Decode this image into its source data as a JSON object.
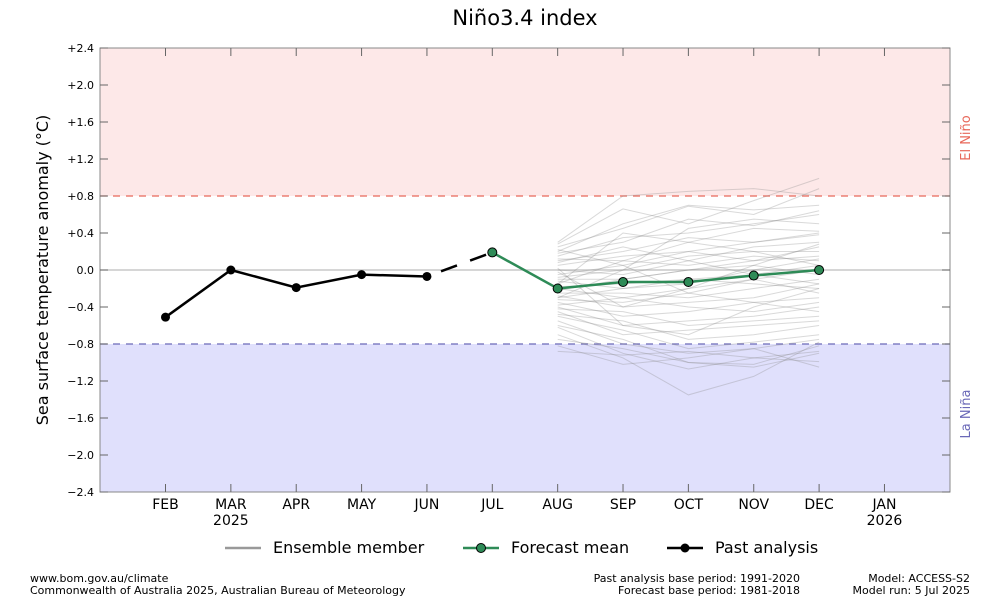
{
  "chart_data": {
    "type": "line",
    "title": "Niño3.4 index",
    "ylabel": "Sea surface temperature anomaly (°C)",
    "ylim": [
      -2.4,
      2.4
    ],
    "yticks": [
      "+2.4",
      "+2.0",
      "+1.6",
      "+1.2",
      "+0.8",
      "+0.4",
      "0.0",
      "−0.4",
      "−0.8",
      "−1.2",
      "−1.6",
      "−2.0",
      "−2.4"
    ],
    "x_months": [
      "FEB",
      "MAR",
      "APR",
      "MAY",
      "JUN",
      "JUL",
      "AUG",
      "SEP",
      "OCT",
      "NOV",
      "DEC",
      "JAN"
    ],
    "x_years": [
      {
        "month": "MAR",
        "year": "2025"
      },
      {
        "month": "JAN",
        "year": "2026"
      }
    ],
    "thresholds": {
      "el_nino": {
        "value": 0.8,
        "label": "El Niño",
        "color": "#e8685a",
        "band_color": "#fde8e8"
      },
      "la_nina": {
        "value": -0.8,
        "label": "La Niña",
        "color": "#6b69b8",
        "band_color": "#e0e0fc"
      }
    },
    "series": [
      {
        "name": "Past analysis",
        "color": "#000000",
        "months": [
          "FEB",
          "MAR",
          "APR",
          "MAY",
          "JUN"
        ],
        "values": [
          -0.51,
          0.0,
          -0.19,
          -0.05,
          -0.07
        ]
      },
      {
        "name": "Forecast mean",
        "color": "#2e8b57",
        "months": [
          "JUL",
          "AUG",
          "SEP",
          "OCT",
          "NOV",
          "DEC"
        ],
        "values": [
          0.19,
          -0.2,
          -0.13,
          -0.13,
          -0.06,
          0.0
        ]
      },
      {
        "name": "Ensemble member",
        "color": "#999999",
        "months": [
          "AUG",
          "SEP",
          "OCT",
          "NOV",
          "DEC"
        ],
        "members": [
          [
            0.3,
            0.8,
            0.85,
            0.88,
            0.8
          ],
          [
            0.28,
            0.66,
            0.5,
            0.75,
            0.99
          ],
          [
            0.25,
            0.45,
            0.69,
            0.6,
            0.88
          ],
          [
            0.2,
            0.5,
            0.7,
            0.65,
            0.7
          ],
          [
            0.18,
            0.3,
            0.55,
            0.48,
            0.64
          ],
          [
            0.15,
            0.35,
            0.4,
            0.5,
            0.6
          ],
          [
            0.12,
            0.1,
            0.3,
            0.45,
            0.42
          ],
          [
            0.1,
            0.2,
            0.35,
            0.3,
            0.4
          ],
          [
            0.05,
            0.15,
            0.2,
            0.3,
            0.38
          ],
          [
            0.0,
            -0.05,
            0.1,
            0.25,
            0.3
          ],
          [
            -0.05,
            0.05,
            0.2,
            0.1,
            0.25
          ],
          [
            -0.08,
            0.0,
            0.15,
            0.2,
            0.2
          ],
          [
            -0.1,
            -0.1,
            0.0,
            0.1,
            0.15
          ],
          [
            -0.12,
            -0.2,
            -0.15,
            0.0,
            0.12
          ],
          [
            -0.15,
            0.1,
            0.05,
            0.15,
            0.1
          ],
          [
            -0.18,
            -0.15,
            -0.1,
            -0.05,
            0.05
          ],
          [
            -0.2,
            -0.3,
            -0.2,
            -0.1,
            0.0
          ],
          [
            -0.22,
            -0.1,
            0.0,
            0.05,
            -0.05
          ],
          [
            -0.25,
            -0.25,
            -0.3,
            -0.2,
            -0.1
          ],
          [
            -0.28,
            -0.4,
            -0.35,
            -0.3,
            -0.15
          ],
          [
            -0.3,
            -0.2,
            -0.1,
            -0.15,
            -0.2
          ],
          [
            -0.32,
            -0.35,
            -0.25,
            -0.1,
            -0.25
          ],
          [
            -0.35,
            -0.5,
            -0.45,
            -0.35,
            -0.3
          ],
          [
            -0.38,
            -0.3,
            -0.4,
            -0.45,
            -0.35
          ],
          [
            -0.4,
            -0.6,
            -0.55,
            -0.5,
            -0.4
          ],
          [
            -0.42,
            -0.45,
            -0.6,
            -0.55,
            -0.5
          ],
          [
            -0.45,
            -0.7,
            -0.65,
            -0.6,
            -0.55
          ],
          [
            -0.48,
            -0.55,
            -0.75,
            -0.7,
            -0.6
          ],
          [
            -0.5,
            -0.65,
            -0.85,
            -0.78,
            -0.7
          ],
          [
            -0.55,
            -0.8,
            -0.9,
            -0.85,
            -0.75
          ],
          [
            -0.6,
            -0.75,
            -1.0,
            -1.02,
            -0.82
          ],
          [
            -0.62,
            -0.9,
            -1.07,
            -0.95,
            -0.88
          ],
          [
            -0.7,
            -0.95,
            -1.35,
            -1.15,
            -0.78
          ],
          [
            -0.75,
            -0.85,
            -1.0,
            -1.05,
            -0.9
          ],
          [
            -0.82,
            -1.02,
            -0.95,
            -0.85,
            -1.05
          ],
          [
            -0.88,
            -0.92,
            -0.88,
            -0.95,
            -0.99
          ],
          [
            0.08,
            0.25,
            0.1,
            -0.05,
            -0.15
          ],
          [
            -0.02,
            -0.4,
            -0.2,
            0.05,
            0.28
          ],
          [
            0.22,
            0.05,
            -0.25,
            -0.35,
            -0.45
          ],
          [
            -0.15,
            0.4,
            0.3,
            0.2,
            0.05
          ],
          [
            -0.3,
            0.0,
            0.45,
            0.55,
            0.5
          ],
          [
            0.02,
            -0.6,
            -0.7,
            -0.4,
            -0.2
          ]
        ]
      }
    ],
    "legend": {
      "position": "bottom",
      "items": [
        "Ensemble member",
        "Forecast mean",
        "Past analysis"
      ]
    }
  },
  "footer": {
    "source_url": "www.bom.gov.au/climate",
    "copyright": "Commonwealth of Australia 2025, Australian Bureau of Meteorology",
    "past_period": "Past analysis base period: 1991-2020",
    "forecast_period": "Forecast base period: 1981-2018",
    "model": "Model: ACCESS-S2",
    "model_run": "Model run: 5 Jul 2025"
  }
}
